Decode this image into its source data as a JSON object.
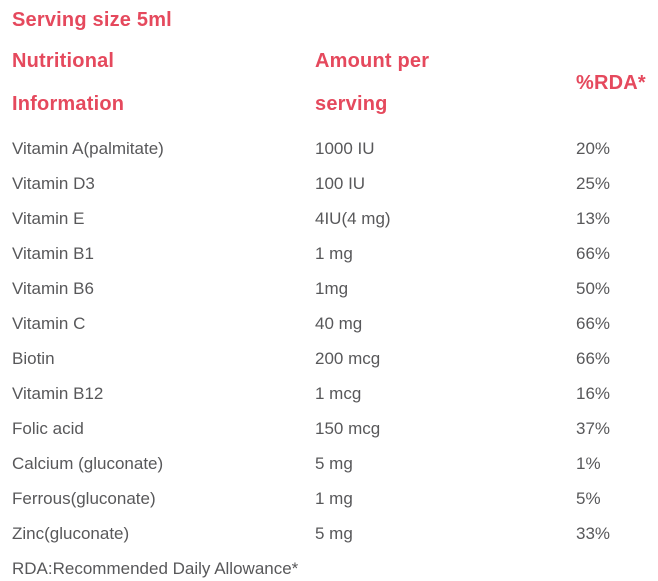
{
  "page": {
    "serving_size_label": "Serving size 5ml",
    "footnote": "RDA:Recommended Daily Allowance*"
  },
  "colors": {
    "accent": "#e5495d",
    "text": "#58585a"
  },
  "table": {
    "headers": {
      "nutrient": "Nutritional\nInformation",
      "amount": "Amount per\nserving",
      "rda": "%RDA*"
    },
    "rows": [
      {
        "nutrient": "Vitamin A(palmitate)",
        "amount": "1000 IU",
        "rda": "20%"
      },
      {
        "nutrient": "Vitamin D3",
        "amount": "100 IU",
        "rda": "25%"
      },
      {
        "nutrient": "Vitamin E",
        "amount": "4IU(4 mg)",
        "rda": "13%"
      },
      {
        "nutrient": "Vitamin B1",
        "amount": "1 mg",
        "rda": "66%"
      },
      {
        "nutrient": "Vitamin B6",
        "amount": "1mg",
        "rda": "50%"
      },
      {
        "nutrient": "Vitamin C",
        "amount": "40 mg",
        "rda": "66%"
      },
      {
        "nutrient": "Biotin",
        "amount": "200 mcg",
        "rda": "66%"
      },
      {
        "nutrient": "Vitamin B12",
        "amount": "1 mcg",
        "rda": "16%"
      },
      {
        "nutrient": "Folic acid",
        "amount": "150 mcg",
        "rda": "37%"
      },
      {
        "nutrient": "Calcium (gluconate)",
        "amount": "5 mg",
        "rda": "1%"
      },
      {
        "nutrient": "Ferrous(gluconate)",
        "amount": "1 mg",
        "rda": "5%"
      },
      {
        "nutrient": "Zinc(gluconate)",
        "amount": "5 mg",
        "rda": "33%"
      }
    ]
  }
}
